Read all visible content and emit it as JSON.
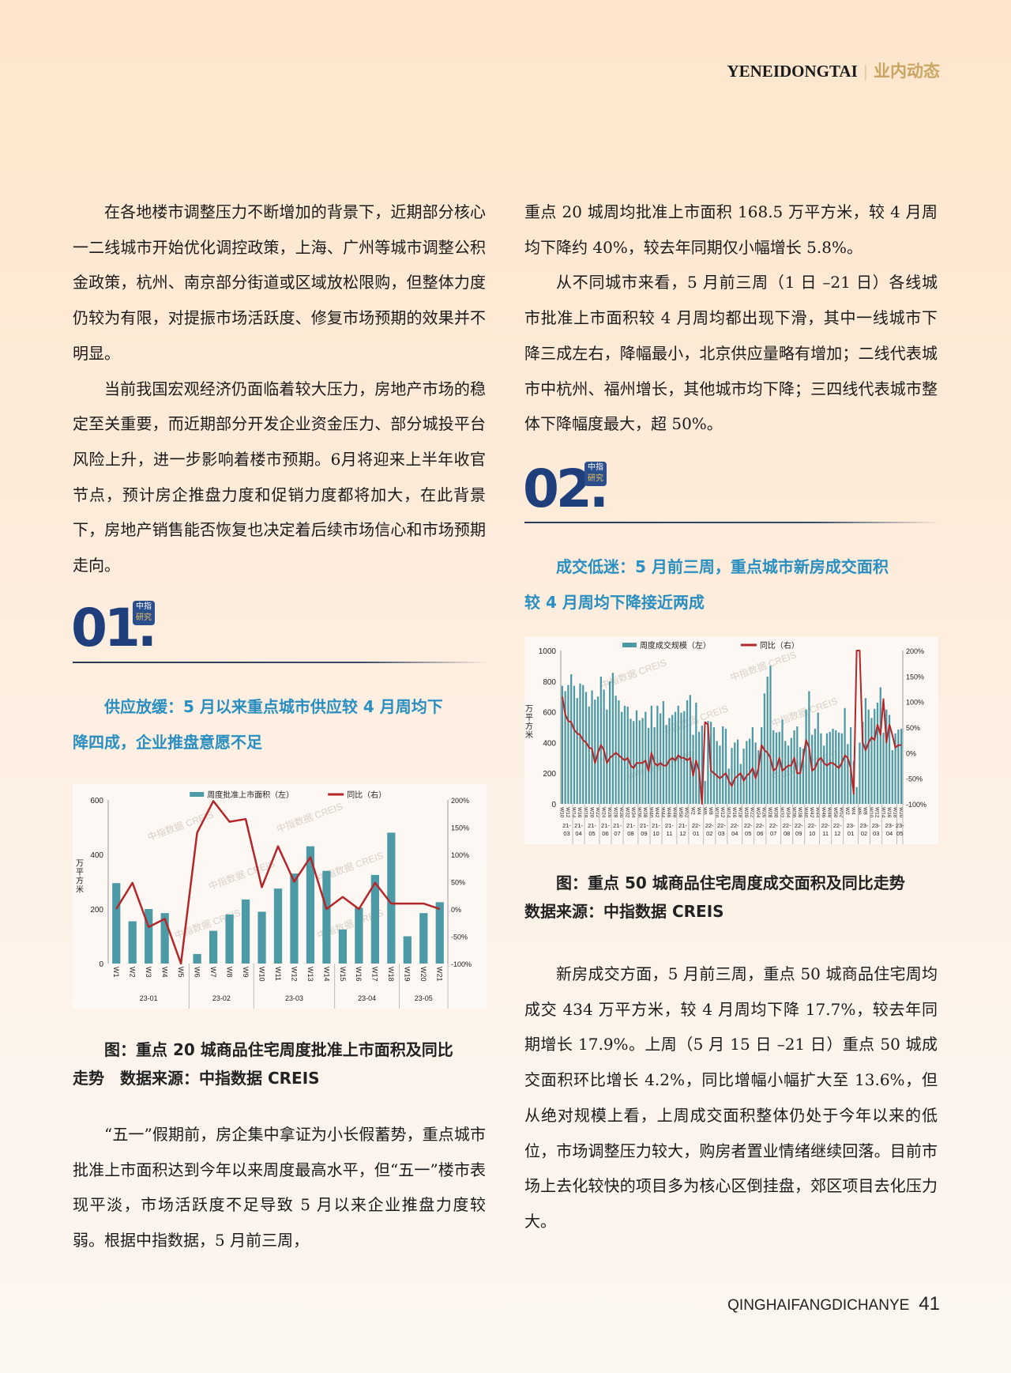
{
  "header": {
    "latin": "YENEIDONGTAI",
    "separator": "|",
    "chinese": "业内动态"
  },
  "left_column": {
    "paragraphs": [
      "在各地楼市调整压力不断增加的背景下，近期部分核心一二线城市开始优化调控政策，上海、广州等城市调整公积金政策，杭州、南京部分街道或区域放松限购，但整体力度仍较为有限，对提振市场活跃度、修复市场预期的效果并不明显。",
      "当前我国宏观经济仍面临着较大压力，房地产市场的稳定至关重要，而近期部分开发企业资金压力、部分城投平台风险上升，进一步影响着楼市预期。6月将迎来上半年收官节点，预计房企推盘力度和促销力度都将加大，在此背景下，房地产销售能否恢复也决定着后续市场信心和市场预期走向。"
    ],
    "section": {
      "number": "01",
      "dot": ".",
      "badge_top": "中指",
      "badge_bottom": "研究",
      "subtitle": [
        "供应放缓：5 月以来重点城市供应较 4 月周均下",
        "降四成，企业推盘意愿不足"
      ]
    },
    "caption": [
      "图：重点 20 城商品住宅周度批准上市面积及同比",
      "走势　数据来源：中指数据 CREIS"
    ],
    "paragraph_after": "“五一”假期前，房企集中拿证为小长假蓄势，重点城市批准上市面积达到今年以来周度最高水平，但“五一”楼市表现平淡，市场活跃度不足导致 5 月以来企业推盘力度较弱。根据中指数据，5 月前三周，"
  },
  "right_column": {
    "continuation": "重点 20 城周均批准上市面积 168.5 万平方米，较 4 月周均下降约 40%，较去年同期仅小幅增长 5.8%。",
    "paragraph": "从不同城市来看，5 月前三周（1 日 –21 日）各线城市批准上市面积较 4 月周均都出现下滑，其中一线城市下降三成左右，降幅最小，北京供应量略有增加；二线代表城市中杭州、福州增长，其他城市均下降；三四线代表城市整体下降幅度最大，超 50%。",
    "section": {
      "number": "02",
      "dot": ".",
      "badge_top": "中指",
      "badge_bottom": "研究",
      "subtitle": [
        "成交低迷：5 月前三周，重点城市新房成交面积",
        "较 4 月周均下降接近两成"
      ]
    },
    "caption": [
      "图：重点 50 城商品住宅周度成交面积及同比走势",
      "数据来源：中指数据 CREIS"
    ],
    "paragraph_after": "新房成交方面，5 月前三周，重点 50 城商品住宅周均成交 434 万平方米，较 4 月周均下降 17.7%，较去年同期增长 17.9%。上周（5 月 15 日 –21 日）重点 50 城成交面积环比增长 4.2%，同比增幅小幅扩大至 13.6%，但从绝对规模上看，上周成交面积整体仍处于今年以来的低位，市场调整压力较大，购房者置业情绪继续回落。目前市场上去化较快的项目多为核心区倒挂盘，郊区项目去化压力大。"
  },
  "footer": {
    "magazine": "QINGHAIFANGDICHANYE",
    "page": "41"
  },
  "colors": {
    "bar": "#4b9aa6",
    "line": "#b3262a",
    "section_blue": "#1f3f7c",
    "subtitle_blue": "#2a8fc0",
    "header_gold": "#c9a664"
  },
  "chart_data": [
    {
      "type": "bar+line",
      "watermark": "中指数据 CREIS",
      "legend": {
        "bar": "周度批准上市面积（左）",
        "line": "同比（右）",
        "placement": "top"
      },
      "ylabel": "万平方米",
      "ylim": [
        0,
        600
      ],
      "y_ticks": [
        "0",
        "200",
        "400",
        "600"
      ],
      "y2lim": [
        -100,
        200
      ],
      "y2_ticks": [
        "-100%",
        "-50%",
        "0%",
        "50%",
        "100%",
        "150%",
        "200%"
      ],
      "categories": [
        "W1",
        "W2",
        "W3",
        "W4",
        "W5",
        "W6",
        "W7",
        "W8",
        "W9",
        "W10",
        "W11",
        "W12",
        "W13",
        "W14",
        "W15",
        "W16",
        "W17",
        "W18",
        "W19",
        "W20",
        "W21"
      ],
      "month_groups": [
        {
          "label": "23-01",
          "count": 5
        },
        {
          "label": "23-02",
          "count": 4
        },
        {
          "label": "23-03",
          "count": 5
        },
        {
          "label": "23-04",
          "count": 4
        },
        {
          "label": "23-05",
          "count": 3
        }
      ],
      "bar_values": [
        295,
        155,
        200,
        185,
        0,
        35,
        120,
        180,
        235,
        190,
        275,
        330,
        430,
        340,
        125,
        205,
        325,
        480,
        100,
        185,
        225
      ],
      "line_values": [
        0,
        48,
        -33,
        -18,
        -100,
        140,
        198,
        160,
        165,
        40,
        115,
        50,
        95,
        0,
        22,
        0,
        48,
        10,
        10,
        10,
        0
      ]
    },
    {
      "type": "bar+line",
      "watermark": "中指数据 CREIS",
      "legend": {
        "bar": "周度成交规模（左）",
        "line": "同比（右）",
        "placement": "top"
      },
      "ylabel": "万平方米",
      "ylim": [
        0,
        1000
      ],
      "y_ticks": [
        "0",
        "200",
        "400",
        "600",
        "800",
        "1000"
      ],
      "y2lim": [
        -100,
        200
      ],
      "y2_ticks": [
        "-100%",
        "-50%",
        "0%",
        "50%",
        "100%",
        "150%",
        "200%"
      ],
      "x_tick_labels": [
        "W10",
        "W12",
        "W14",
        "W16",
        "W18",
        "W20",
        "W22",
        "W24",
        "W26",
        "W28",
        "W30",
        "W32",
        "W34",
        "W36",
        "W38",
        "W40",
        "W42",
        "W44",
        "W46",
        "W48",
        "W50",
        "W52",
        "W2",
        "W4",
        "W6",
        "W8",
        "W10",
        "W12",
        "W14",
        "W16",
        "W18",
        "W20",
        "W22",
        "W24",
        "W26",
        "W28",
        "W30",
        "W32",
        "W34",
        "W36",
        "W38",
        "W40",
        "W42",
        "W44",
        "W46",
        "W48",
        "W50",
        "W52",
        "W2",
        "W4",
        "W6",
        "W8",
        "W10",
        "W12",
        "W14",
        "W16",
        "W18",
        "W20"
      ],
      "month_groups": [
        {
          "label": "21-03",
          "count": 4
        },
        {
          "label": "21-04",
          "count": 4
        },
        {
          "label": "21-05",
          "count": 5
        },
        {
          "label": "21-06",
          "count": 4
        },
        {
          "label": "21-07",
          "count": 4
        },
        {
          "label": "21-08",
          "count": 5
        },
        {
          "label": "21-09",
          "count": 4
        },
        {
          "label": "21-10",
          "count": 4
        },
        {
          "label": "21-11",
          "count": 5
        },
        {
          "label": "21-12",
          "count": 4
        },
        {
          "label": "22-01",
          "count": 5
        },
        {
          "label": "22-02",
          "count": 4
        },
        {
          "label": "22-03",
          "count": 4
        },
        {
          "label": "22-04",
          "count": 5
        },
        {
          "label": "22-05",
          "count": 4
        },
        {
          "label": "22-06",
          "count": 4
        },
        {
          "label": "22-07",
          "count": 5
        },
        {
          "label": "22-08",
          "count": 4
        },
        {
          "label": "22-09",
          "count": 4
        },
        {
          "label": "22-10",
          "count": 5
        },
        {
          "label": "22-11",
          "count": 4
        },
        {
          "label": "22-12",
          "count": 4
        },
        {
          "label": "23-01",
          "count": 5
        },
        {
          "label": "23-02",
          "count": 4
        },
        {
          "label": "23-03",
          "count": 4
        },
        {
          "label": "23-04",
          "count": 5
        },
        {
          "label": "23-05",
          "count": 3
        }
      ],
      "bar_values": [
        770,
        735,
        775,
        845,
        770,
        690,
        785,
        775,
        730,
        635,
        740,
        680,
        700,
        830,
        745,
        615,
        800,
        855,
        705,
        675,
        600,
        640,
        635,
        555,
        540,
        610,
        545,
        560,
        600,
        495,
        640,
        500,
        640,
        590,
        670,
        515,
        560,
        580,
        600,
        640,
        595,
        605,
        675,
        710,
        450,
        660,
        470,
        510,
        150,
        540,
        535,
        500,
        410,
        380,
        505,
        490,
        230,
        365,
        400,
        420,
        260,
        360,
        410,
        425,
        500,
        400,
        350,
        500,
        720,
        830,
        900,
        480,
        465,
        470,
        550,
        410,
        380,
        430,
        480,
        505,
        370,
        360,
        615,
        735,
        450,
        490,
        595,
        460,
        380,
        460,
        470,
        490,
        480,
        465,
        460,
        625,
        390,
        500,
        280,
        110,
        400,
        535,
        690,
        615,
        560,
        620,
        660,
        760,
        465,
        615,
        580,
        350,
        460,
        485,
        490
      ],
      "line_values": [
        110,
        75,
        62,
        60,
        45,
        38,
        35,
        25,
        20,
        10,
        8,
        -20,
        0,
        15,
        5,
        -20,
        -10,
        -5,
        0,
        -5,
        -10,
        -15,
        -10,
        -25,
        -30,
        -20,
        -20,
        -20,
        -15,
        -35,
        0,
        -20,
        -25,
        -20,
        -25,
        -25,
        -15,
        -10,
        -15,
        -5,
        -10,
        -10,
        -15,
        -10,
        -45,
        -15,
        -35,
        -100,
        60,
        55,
        -35,
        -40,
        -45,
        -50,
        -45,
        -40,
        -55,
        -65,
        -50,
        -45,
        -40,
        -55,
        -45,
        -40,
        -30,
        -50,
        -30,
        15,
        5,
        0,
        -10,
        -35,
        -30,
        -10,
        -35,
        -30,
        -25,
        -25,
        -10,
        -40,
        -40,
        -10,
        25,
        10,
        -35,
        -30,
        -15,
        -10,
        -20,
        -25,
        -20,
        -20,
        -25,
        -30,
        -20,
        -5,
        -10,
        -30,
        -80,
        300,
        300,
        20,
        5,
        20,
        30,
        25,
        55,
        35,
        105,
        20,
        55,
        35,
        10,
        15,
        15
      ]
    }
  ]
}
